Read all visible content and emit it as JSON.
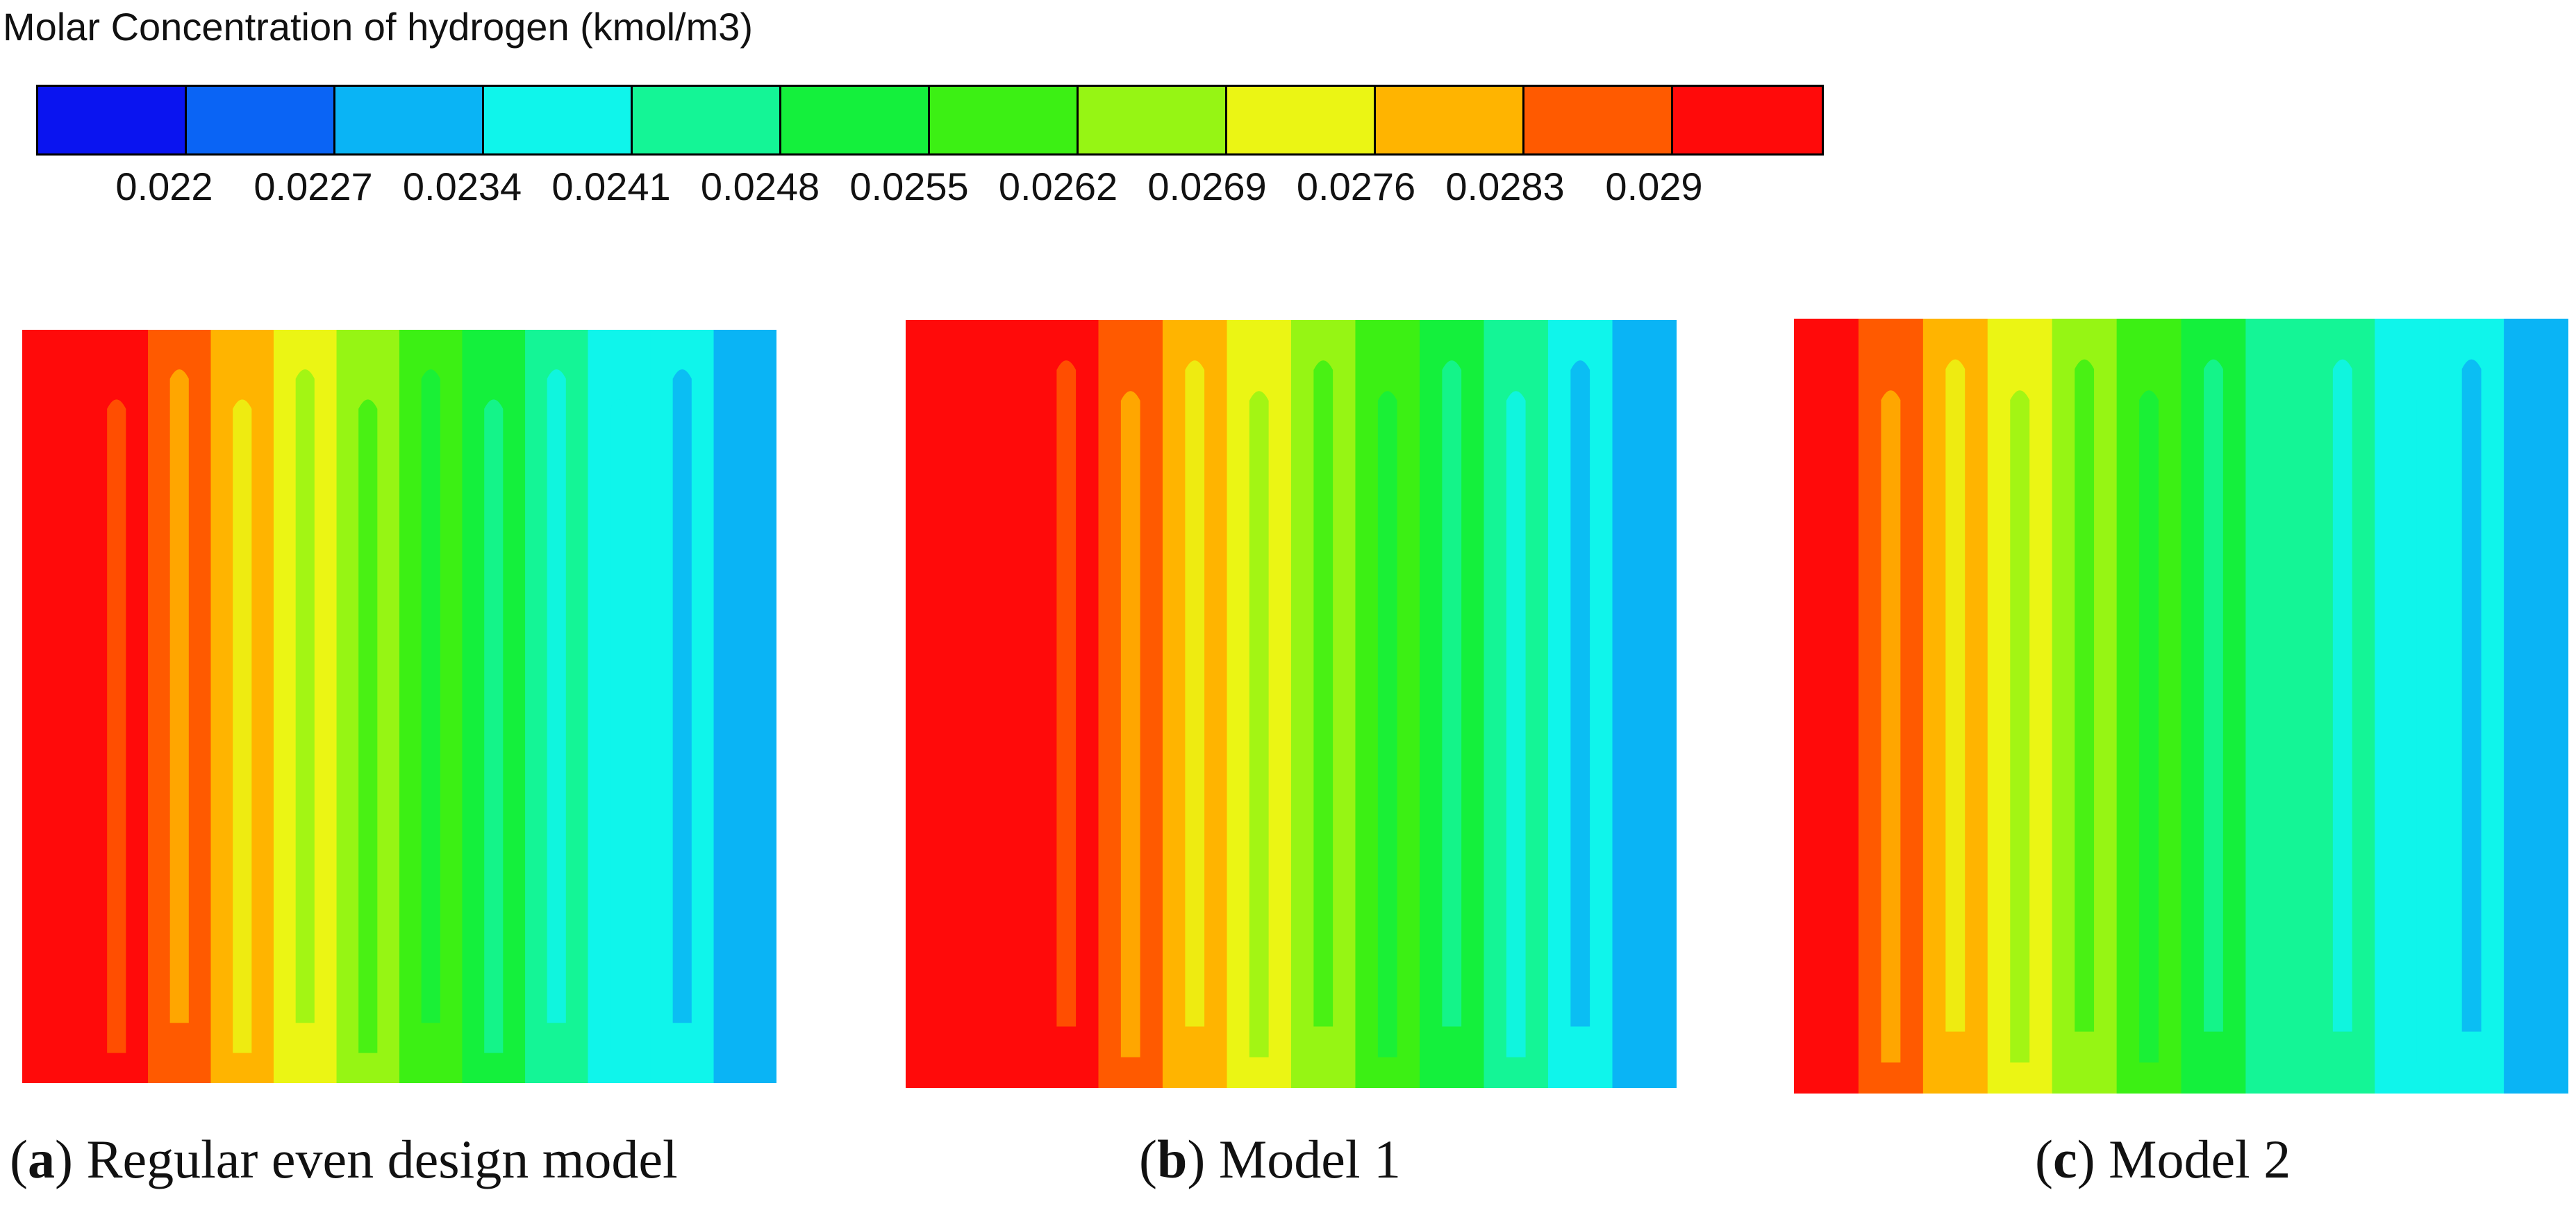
{
  "legend": {
    "title": "Molar Concentration of hydrogen (kmol/m3)",
    "colors": [
      "#0a14f0",
      "#0a64f5",
      "#0ab4f5",
      "#0ff5eb",
      "#14f596",
      "#14f03c",
      "#3cf014",
      "#96f514",
      "#ebf514",
      "#ffb400",
      "#ff5a00",
      "#ff0a0a"
    ],
    "ticks": [
      "0.022",
      "0.0227",
      "0.0234",
      "0.0241",
      "0.0248",
      "0.0255",
      "0.0262",
      "0.0269",
      "0.0276",
      "0.0283",
      "0.029"
    ]
  },
  "panels": [
    {
      "id": "a",
      "caption_letter": "a",
      "caption_text": ") Regular even design model",
      "fills": [
        "#ff0a0a",
        "#ff0a0a",
        "#ff5a00",
        "#ffb400",
        "#ebf514",
        "#96f514",
        "#3cf014",
        "#14f03c",
        "#14f596",
        "#0ff5eb",
        "#0ff5eb",
        "#0ab4f5"
      ]
    },
    {
      "id": "b",
      "caption_letter": "b",
      "caption_text": ") Model 1",
      "fills": [
        "#ff0a0a",
        "#ff0a0a",
        "#ff0a0a",
        "#ff5a00",
        "#ffb400",
        "#ebf514",
        "#96f514",
        "#3cf014",
        "#14f03c",
        "#14f596",
        "#0ff5eb",
        "#0ab4f5"
      ]
    },
    {
      "id": "c",
      "caption_letter": "c",
      "caption_text": ") Model 2",
      "fills": [
        "#ff0a0a",
        "#ff5a00",
        "#ffb400",
        "#ebf514",
        "#96f514",
        "#3cf014",
        "#14f03c",
        "#14f596",
        "#14f596",
        "#0ff5eb",
        "#0ff5eb",
        "#0ab4f5"
      ]
    }
  ]
}
